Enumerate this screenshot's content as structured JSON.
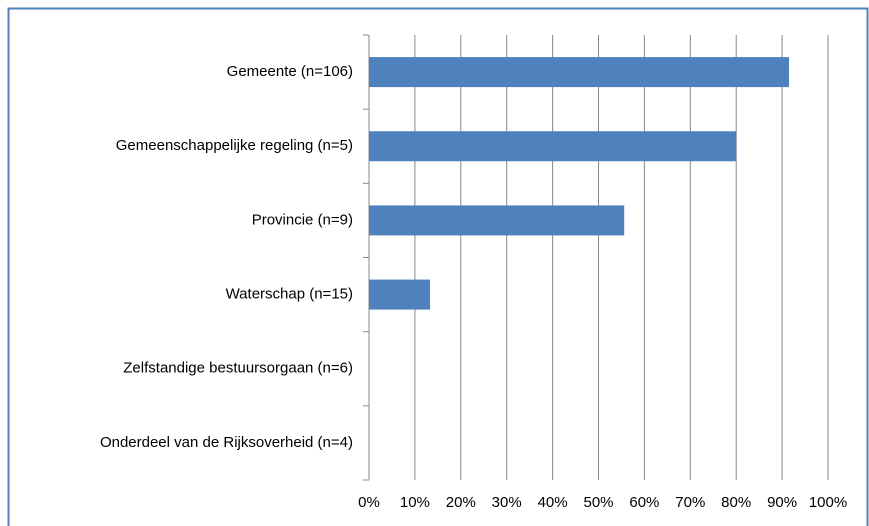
{
  "chart_data": {
    "type": "bar",
    "orientation": "horizontal",
    "categories": [
      "Gemeente (n=106)",
      "Gemeenschappelijke regeling (n=5)",
      "Provincie (n=9)",
      "Waterschap (n=15)",
      "Zelfstandige bestuursorgaan (n=6)",
      "Onderdeel van de Rijksoverheid (n=4)"
    ],
    "values": [
      91.5,
      80,
      55.6,
      13.3,
      0,
      0
    ],
    "color": "#4f81bd",
    "xlim": [
      0,
      100
    ],
    "xticks": [
      {
        "value": 0,
        "label": "0%"
      },
      {
        "value": 10,
        "label": "10%"
      },
      {
        "value": 20,
        "label": "20%"
      },
      {
        "value": 30,
        "label": "30%"
      },
      {
        "value": 40,
        "label": "40%"
      },
      {
        "value": 50,
        "label": "50%"
      },
      {
        "value": 60,
        "label": "60%"
      },
      {
        "value": 70,
        "label": "70%"
      },
      {
        "value": 80,
        "label": "80%"
      },
      {
        "value": 90,
        "label": "90%"
      },
      {
        "value": 100,
        "label": "100%"
      }
    ],
    "grid": true
  }
}
